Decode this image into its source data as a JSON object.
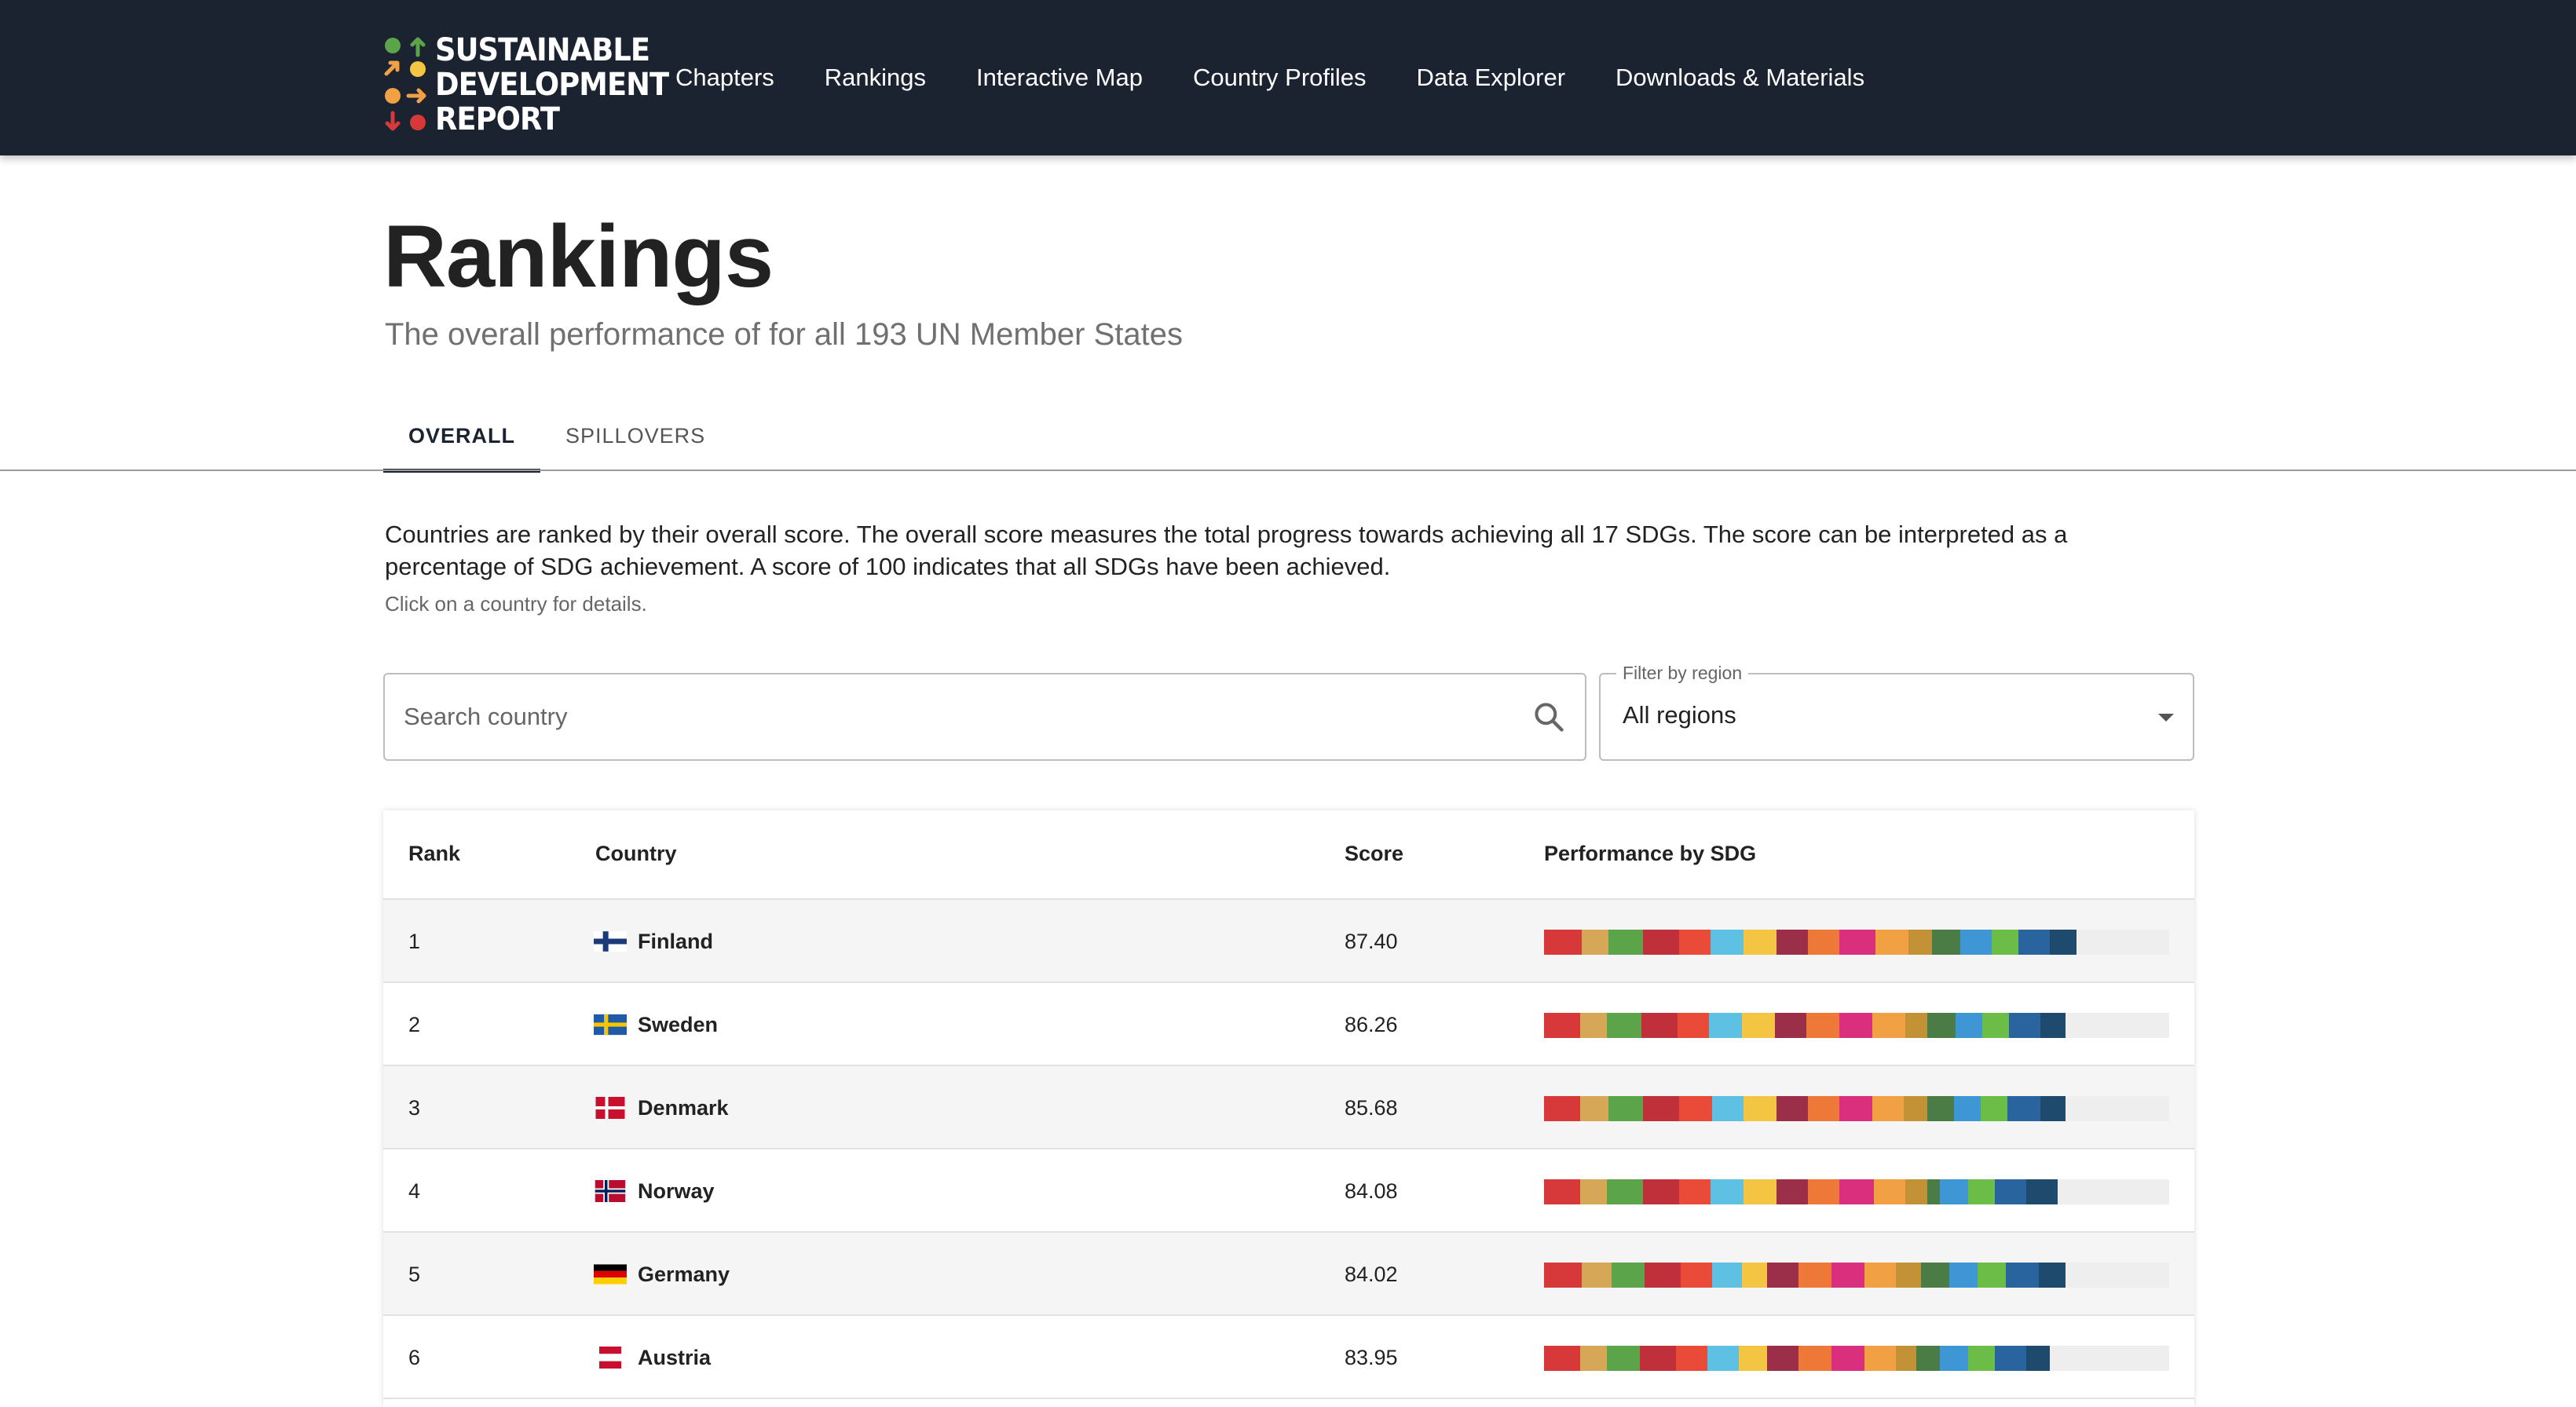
{
  "site": {
    "logo_lines": [
      "SUSTAINABLE",
      "DEVELOPMENT",
      "REPORT"
    ],
    "nav": [
      "Chapters",
      "Rankings",
      "Interactive Map",
      "Country Profiles",
      "Data Explorer",
      "Downloads & Materials"
    ]
  },
  "page": {
    "title": "Rankings",
    "subtitle": "The overall performance of for all 193 UN Member States"
  },
  "tabs": [
    "OVERALL",
    "SPILLOVERS"
  ],
  "description": "Countries are ranked by their overall score. The overall score measures the total progress towards achieving all 17 SDGs. The score can be interpreted as a percentage of SDG achievement. A score of 100 indicates that all SDGs have been achieved.",
  "hint": "Click on a country for details.",
  "search": {
    "placeholder": "Search country",
    "value": ""
  },
  "filter": {
    "label": "Filter by region",
    "value": "All regions"
  },
  "table": {
    "headers": {
      "rank": "Rank",
      "country": "Country",
      "score": "Score",
      "performance": "Performance by SDG"
    },
    "rows": [
      {
        "rank": "1",
        "country": "Finland",
        "flag": "finland-flag",
        "score": "87.40"
      },
      {
        "rank": "2",
        "country": "Sweden",
        "flag": "sweden-flag",
        "score": "86.26"
      },
      {
        "rank": "3",
        "country": "Denmark",
        "flag": "denmark-flag",
        "score": "85.68"
      },
      {
        "rank": "4",
        "country": "Norway",
        "flag": "norway-flag",
        "score": "84.08"
      },
      {
        "rank": "5",
        "country": "Germany",
        "flag": "germany-flag",
        "score": "84.02"
      },
      {
        "rank": "6",
        "country": "Austria",
        "flag": "austria-flag",
        "score": "83.95"
      }
    ]
  },
  "sdg_colors": [
    "#d7393b",
    "#d5a757",
    "#5ca44a",
    "#c0303b",
    "#ea4b39",
    "#5ec1e4",
    "#f4c542",
    "#9b2e48",
    "#ee7838",
    "#d92f7d",
    "#f1a043",
    "#c49236",
    "#4b7c45",
    "#3f96d5",
    "#6bbd48",
    "#2a649e",
    "#1e4a6e"
  ],
  "bar_track_color": "#eeeeee",
  "header_bg": "#1b2331"
}
